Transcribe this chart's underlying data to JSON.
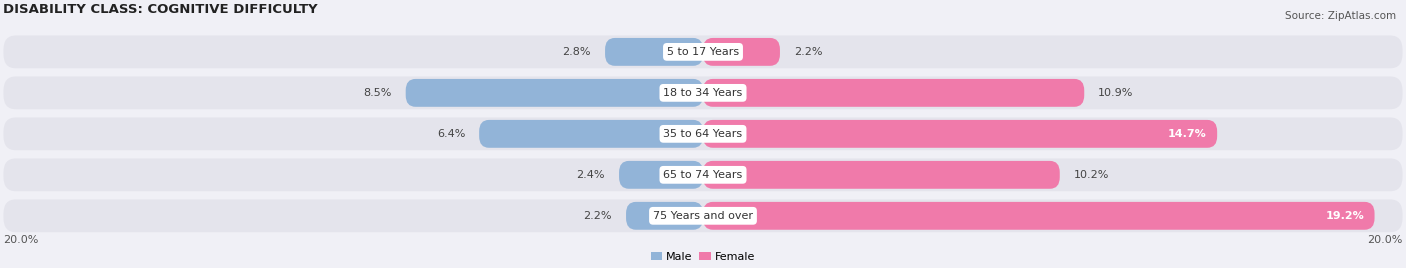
{
  "title": "DISABILITY CLASS: COGNITIVE DIFFICULTY",
  "source": "Source: ZipAtlas.com",
  "categories": [
    "5 to 17 Years",
    "18 to 34 Years",
    "35 to 64 Years",
    "65 to 74 Years",
    "75 Years and over"
  ],
  "male_values": [
    2.8,
    8.5,
    6.4,
    2.4,
    2.2
  ],
  "female_values": [
    2.2,
    10.9,
    14.7,
    10.2,
    19.2
  ],
  "male_color": "#92b4d8",
  "female_color": "#f07aaa",
  "row_bg_color": "#e4e4ec",
  "axis_max": 20.0,
  "legend_male": "Male",
  "legend_female": "Female",
  "title_fontsize": 9.5,
  "label_fontsize": 8,
  "value_fontsize": 8,
  "tick_fontsize": 8,
  "source_fontsize": 7.5,
  "bar_height": 0.68,
  "female_label_inside_threshold": 13.0,
  "background_color": "#f0f0f6"
}
